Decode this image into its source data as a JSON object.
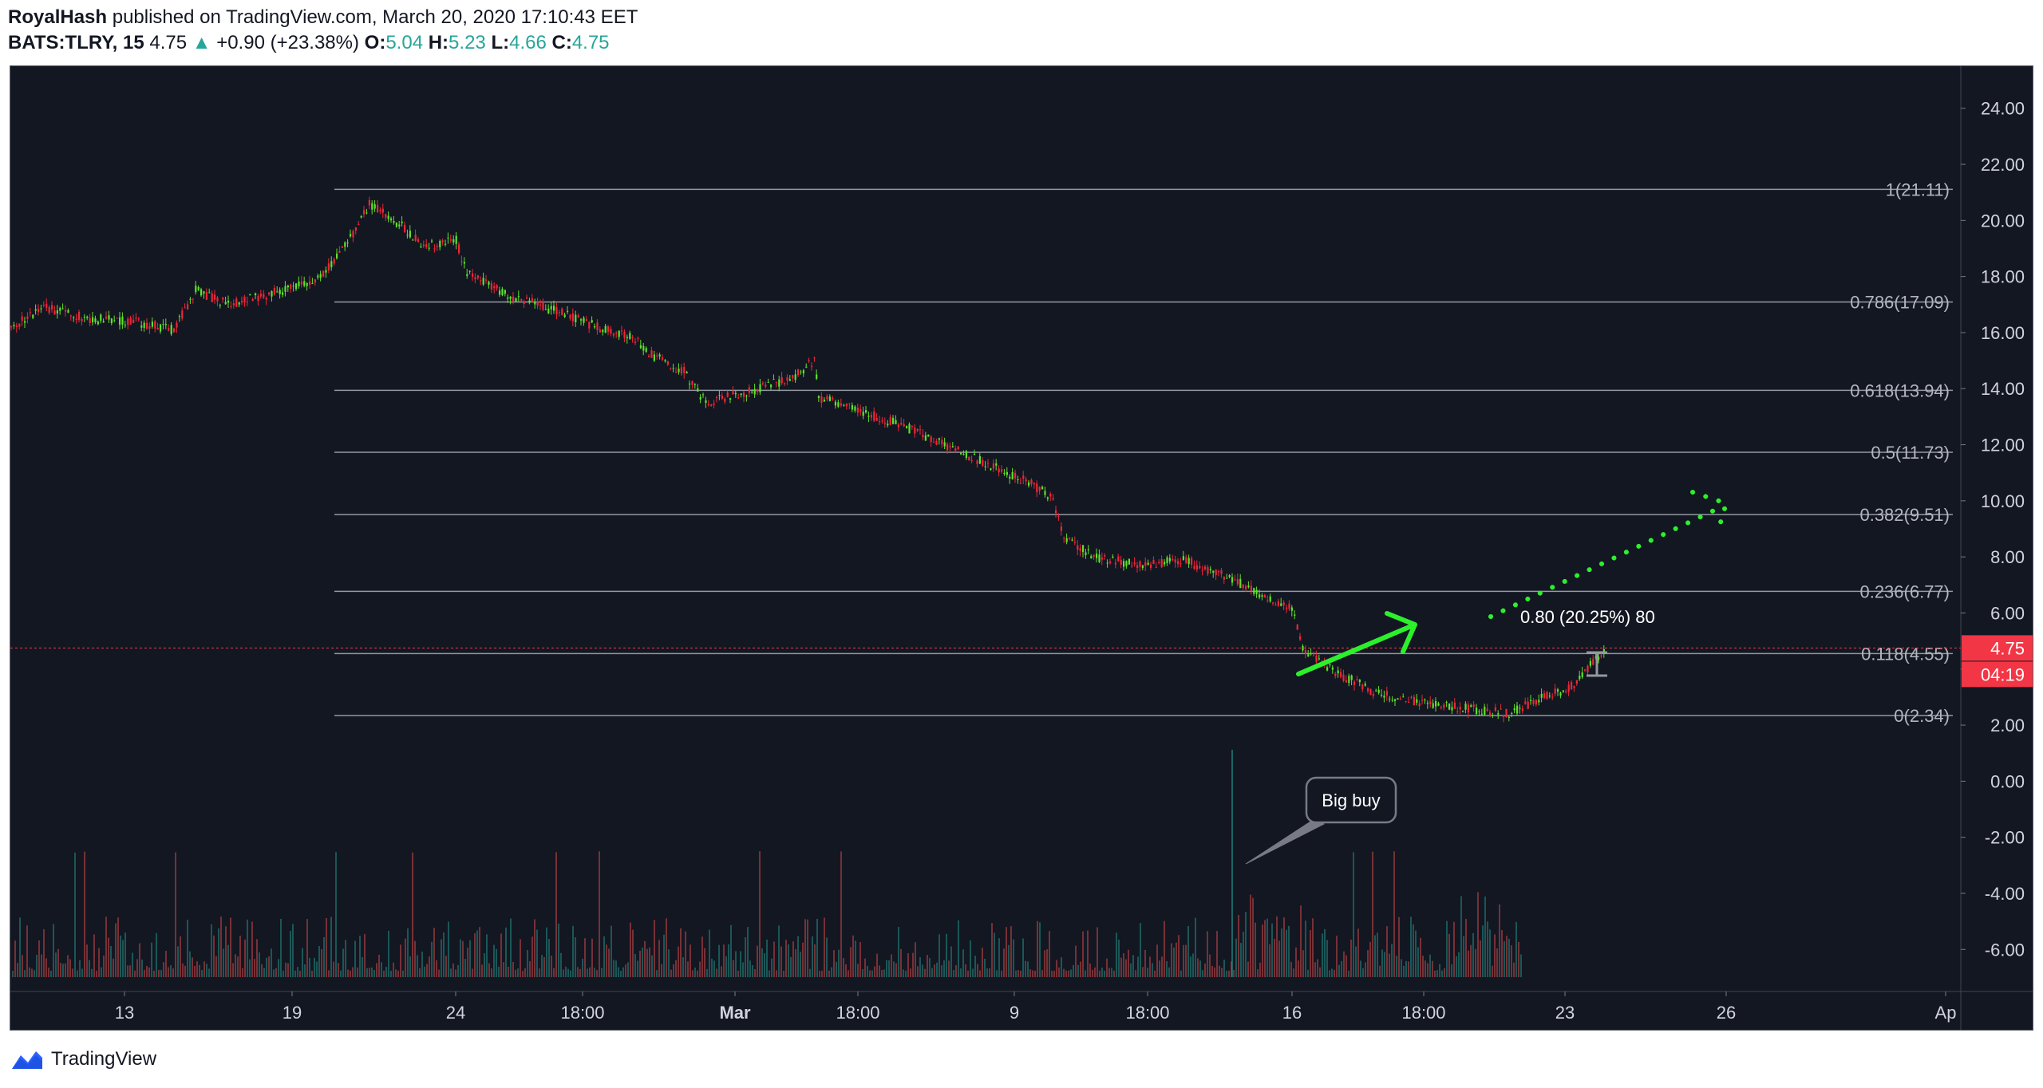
{
  "header": {
    "publisher": "RoyalHash",
    "published_text": "published on TradingView.com, March 20, 2020 17:10:43 EET",
    "symbol": "BATS:TLRY, 15",
    "last": "4.75",
    "change_arrow": "▲",
    "change": "+0.90 (+23.38%)",
    "o_label": "O:",
    "o_value": "5.04",
    "h_label": "H:",
    "h_value": "5.23",
    "l_label": "L:",
    "l_value": "4.66",
    "c_label": "C:",
    "c_value": "4.75"
  },
  "footer": {
    "brand": "TradingView",
    "logo_icon": "tradingview-logo-icon"
  },
  "colors": {
    "background": "#131722",
    "up": "#26a69a",
    "candle_up": "#5ee22a",
    "candle_down": "#ef2537",
    "annotation": "#2cf02c",
    "fib_line": "#9598a1",
    "price_line": "#f23645"
  },
  "chart_data": {
    "type": "candlestick",
    "title": "BATS:TLRY, 15",
    "y_axis": {
      "min": -7.5,
      "max": 25.5,
      "ticks": [
        24,
        22,
        20,
        18,
        16,
        14,
        12,
        10,
        8,
        6,
        4,
        2,
        0,
        -2,
        -4,
        -6
      ],
      "tick_labels": [
        "24.00",
        "22.00",
        "20.00",
        "18.00",
        "16.00",
        "14.00",
        "12.00",
        "10.00",
        "8.00",
        "6.00",
        "4.00",
        "2.00",
        "0.00",
        "-2.00",
        "-4.00",
        "-6.00"
      ],
      "side": "right"
    },
    "x_axis": {
      "tick_labels": [
        "13",
        "19",
        "24",
        "18:00",
        "Mar",
        "18:00",
        "9",
        "18:00",
        "16",
        "18:00",
        "23",
        "26",
        "Ap"
      ]
    },
    "price_path": [
      [
        0.0,
        16.2
      ],
      [
        1.5,
        16.9
      ],
      [
        3.5,
        16.5
      ],
      [
        5.5,
        16.4
      ],
      [
        7.5,
        16.1
      ],
      [
        8.5,
        17.5
      ],
      [
        10.0,
        17.0
      ],
      [
        12.0,
        17.4
      ],
      [
        14.0,
        17.8
      ],
      [
        15.5,
        19.2
      ],
      [
        16.5,
        20.6
      ],
      [
        18.0,
        19.8
      ],
      [
        19.0,
        19.1
      ],
      [
        20.5,
        19.3
      ],
      [
        21.0,
        18.1
      ],
      [
        23.0,
        17.3
      ],
      [
        25.0,
        16.8
      ],
      [
        27.0,
        16.2
      ],
      [
        28.5,
        15.9
      ],
      [
        29.5,
        15.2
      ],
      [
        31.0,
        14.6
      ],
      [
        32.0,
        13.5
      ],
      [
        34.0,
        13.9
      ],
      [
        36.0,
        14.4
      ],
      [
        37.0,
        15.0
      ],
      [
        37.2,
        13.7
      ],
      [
        39.0,
        13.2
      ],
      [
        41.0,
        12.7
      ],
      [
        43.0,
        12.0
      ],
      [
        45.0,
        11.3
      ],
      [
        47.0,
        10.6
      ],
      [
        48.0,
        10.1
      ],
      [
        48.5,
        8.6
      ],
      [
        50.0,
        8.0
      ],
      [
        52.0,
        7.7
      ],
      [
        54.0,
        7.9
      ],
      [
        56.0,
        7.3
      ],
      [
        57.5,
        6.7
      ],
      [
        59.0,
        6.2
      ],
      [
        59.5,
        4.7
      ],
      [
        61.0,
        3.9
      ],
      [
        63.0,
        3.1
      ],
      [
        65.0,
        2.8
      ],
      [
        67.0,
        2.6
      ],
      [
        69.0,
        2.4
      ],
      [
        70.0,
        2.8
      ],
      [
        72.0,
        3.4
      ],
      [
        73.0,
        4.4
      ],
      [
        73.5,
        4.75
      ]
    ],
    "fib_levels": [
      {
        "ratio": "1",
        "price": 21.11,
        "label": "1(21.11)"
      },
      {
        "ratio": "0.786",
        "price": 17.09,
        "label": "0.786(17.09)"
      },
      {
        "ratio": "0.618",
        "price": 13.94,
        "label": "0.618(13.94)"
      },
      {
        "ratio": "0.5",
        "price": 11.73,
        "label": "0.5(11.73)"
      },
      {
        "ratio": "0.382",
        "price": 9.51,
        "label": "0.382(9.51)"
      },
      {
        "ratio": "0.236",
        "price": 6.77,
        "label": "0.236(6.77)"
      },
      {
        "ratio": "0.118",
        "price": 4.55,
        "label": "0.118(4.55)"
      },
      {
        "ratio": "0",
        "price": 2.34,
        "label": "0(2.34)"
      }
    ],
    "current_price": {
      "value": 4.75,
      "label": "4.75",
      "countdown": "04:19"
    },
    "measure_label": "0.80 (20.25%) 80",
    "callout_text": "Big buy",
    "legend": "none",
    "grid": false
  }
}
